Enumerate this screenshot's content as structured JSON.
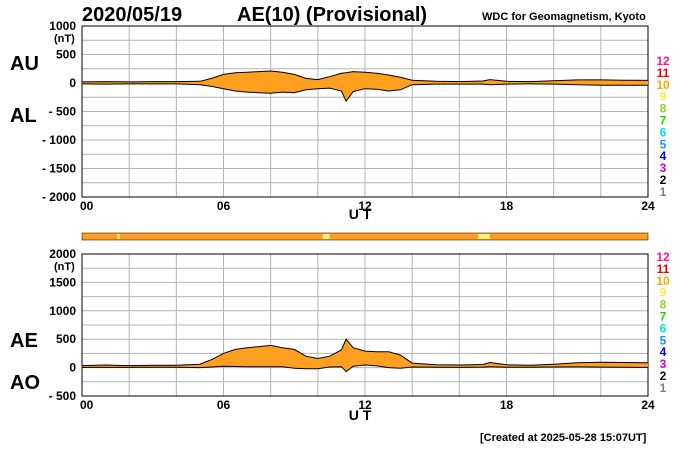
{
  "header": {
    "date": "2020/05/19",
    "title": "AE(10) (Provisional)",
    "source": "WDC for Geomagnetism, Kyoto"
  },
  "footer": {
    "created": "[Created at 2025-05-28 15:07UT]"
  },
  "colors": {
    "fill": "#ff9f20",
    "grid": "#b4b4b4",
    "bar": "#ff9f20",
    "bar_highlight": "#f4f07a",
    "levels": [
      "#ff1493",
      "#ff0000",
      "#ffa500",
      "#f0f04a",
      "#9acd32",
      "#1fd700",
      "#00e5e5",
      "#1e90ff",
      "#0000ff",
      "#d000d0",
      "#000000",
      "#808080",
      "#cfcfcf"
    ]
  },
  "level_labels": [
    "12",
    "11",
    "10",
    "9",
    "8",
    "7",
    "6",
    "5",
    "4",
    "3",
    "2",
    "1"
  ],
  "chart_data": [
    {
      "type": "area",
      "panel": "AU/AL",
      "side_labels": [
        "AU",
        "AL"
      ],
      "unit_label": "(nT)",
      "xlabel": "U T",
      "xlim": [
        0,
        24
      ],
      "x_ticks": [
        "00",
        "06",
        "12",
        "18",
        "24"
      ],
      "ylim": [
        -2000,
        1000
      ],
      "y_ticks": [
        "1000",
        "500",
        "0",
        "- 500",
        "- 1000",
        "- 1500",
        "- 2000"
      ],
      "x": [
        0,
        1,
        2,
        3,
        4,
        5,
        5.5,
        6,
        6.5,
        7,
        7.5,
        8,
        8.5,
        9,
        9.5,
        10,
        10.5,
        11,
        11.2,
        11.5,
        12,
        12.5,
        13,
        13.5,
        14,
        15,
        16,
        17,
        17.3,
        18,
        19,
        20,
        21,
        22,
        23,
        24
      ],
      "series": [
        {
          "name": "AU",
          "values": [
            20,
            25,
            20,
            25,
            25,
            30,
            80,
            150,
            180,
            190,
            200,
            210,
            190,
            150,
            80,
            60,
            110,
            170,
            180,
            200,
            190,
            170,
            140,
            100,
            50,
            30,
            25,
            35,
            60,
            30,
            25,
            40,
            55,
            55,
            50,
            45
          ]
        },
        {
          "name": "AL",
          "values": [
            -15,
            -20,
            -15,
            -15,
            -15,
            -30,
            -60,
            -100,
            -140,
            -160,
            -170,
            -180,
            -160,
            -170,
            -120,
            -100,
            -90,
            -140,
            -320,
            -150,
            -100,
            -110,
            -140,
            -120,
            -30,
            -20,
            -20,
            -20,
            -30,
            -20,
            -15,
            -20,
            -30,
            -40,
            -40,
            -40
          ]
        }
      ]
    },
    {
      "type": "area",
      "panel": "AE/AO",
      "side_labels": [
        "AE",
        "AO"
      ],
      "unit_label": "(nT)",
      "xlabel": "U T",
      "xlim": [
        0,
        24
      ],
      "x_ticks": [
        "00",
        "06",
        "12",
        "18",
        "24"
      ],
      "ylim": [
        -500,
        2000
      ],
      "y_ticks": [
        "2000",
        "1500",
        "1000",
        "500",
        "0",
        "- 500"
      ],
      "x": [
        0,
        1,
        2,
        3,
        4,
        5,
        5.5,
        6,
        6.5,
        7,
        7.5,
        8,
        8.5,
        9,
        9.5,
        10,
        10.5,
        11,
        11.2,
        11.5,
        12,
        12.5,
        13,
        13.5,
        14,
        15,
        16,
        17,
        17.3,
        18,
        19,
        20,
        21,
        22,
        23,
        24
      ],
      "series": [
        {
          "name": "AE",
          "values": [
            35,
            45,
            35,
            40,
            40,
            60,
            140,
            250,
            320,
            350,
            370,
            390,
            350,
            320,
            200,
            160,
            200,
            310,
            500,
            350,
            290,
            280,
            280,
            220,
            80,
            50,
            45,
            55,
            90,
            50,
            40,
            60,
            85,
            95,
            90,
            85
          ]
        },
        {
          "name": "AO",
          "values": [
            3,
            3,
            3,
            5,
            5,
            0,
            10,
            25,
            20,
            15,
            15,
            15,
            15,
            -10,
            -20,
            -20,
            10,
            15,
            -70,
            25,
            45,
            30,
            0,
            -10,
            10,
            5,
            3,
            8,
            15,
            5,
            5,
            10,
            13,
            8,
            5,
            3
          ]
        }
      ]
    }
  ],
  "activity_bar": {
    "highlights": [
      [
        1.5,
        1.6
      ],
      [
        10.2,
        10.5
      ],
      [
        16.8,
        17.3
      ]
    ]
  }
}
